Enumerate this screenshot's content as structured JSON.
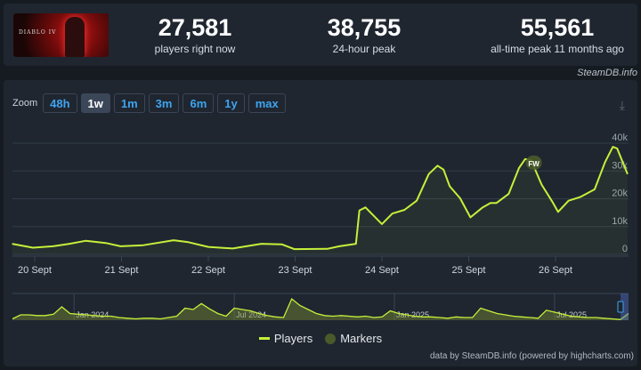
{
  "game": {
    "logo_text": "DIABLO IV"
  },
  "stats": [
    {
      "value": "27,581",
      "label": "players right now"
    },
    {
      "value": "38,755",
      "label": "24-hour peak"
    },
    {
      "value": "55,561",
      "label": "all-time peak 11 months ago"
    }
  ],
  "credit": "SteamDB.info",
  "zoom": {
    "label": "Zoom",
    "buttons": [
      "48h",
      "1w",
      "1m",
      "3m",
      "6m",
      "1y",
      "max"
    ],
    "active": "1w"
  },
  "icons": {
    "download": "download-icon"
  },
  "colors": {
    "line": "#c5f03a",
    "marker": "#4a5a2a",
    "grid": "#323c49"
  },
  "chart_data": {
    "type": "line",
    "x_unit": "days since 20 Sept 00:00",
    "xlim": [
      -0.26,
      6.84
    ],
    "ylim": [
      0,
      40000
    ],
    "yticks": [
      {
        "v": 0,
        "label": "0"
      },
      {
        "v": 10000,
        "label": "10k"
      },
      {
        "v": 20000,
        "label": "20k"
      },
      {
        "v": 30000,
        "label": "30k"
      },
      {
        "v": 40000,
        "label": "40k"
      }
    ],
    "xticks": [
      {
        "v": 0,
        "label": "20 Sept"
      },
      {
        "v": 1,
        "label": "21 Sept"
      },
      {
        "v": 2,
        "label": "22 Sept"
      },
      {
        "v": 3,
        "label": "23 Sept"
      },
      {
        "v": 4,
        "label": "24 Sept"
      },
      {
        "v": 5,
        "label": "25 Sept"
      },
      {
        "v": 6,
        "label": "26 Sept"
      }
    ],
    "series": [
      {
        "name": "Players",
        "points": [
          [
            -0.26,
            3800
          ],
          [
            -0.02,
            2400
          ],
          [
            0.21,
            2900
          ],
          [
            0.4,
            3800
          ],
          [
            0.59,
            4900
          ],
          [
            0.82,
            4100
          ],
          [
            0.99,
            2900
          ],
          [
            1.25,
            3300
          ],
          [
            1.6,
            5100
          ],
          [
            1.77,
            4400
          ],
          [
            2.0,
            2700
          ],
          [
            2.28,
            2100
          ],
          [
            2.61,
            3800
          ],
          [
            2.85,
            3600
          ],
          [
            2.99,
            1900
          ],
          [
            3.37,
            2000
          ],
          [
            3.51,
            2900
          ],
          [
            3.7,
            3800
          ],
          [
            3.74,
            15800
          ],
          [
            3.81,
            16900
          ],
          [
            4.0,
            10900
          ],
          [
            4.12,
            14700
          ],
          [
            4.26,
            16000
          ],
          [
            4.4,
            19300
          ],
          [
            4.54,
            28900
          ],
          [
            4.64,
            31900
          ],
          [
            4.71,
            30500
          ],
          [
            4.78,
            24500
          ],
          [
            4.9,
            20200
          ],
          [
            5.02,
            13300
          ],
          [
            5.16,
            16900
          ],
          [
            5.25,
            18500
          ],
          [
            5.32,
            18500
          ],
          [
            5.46,
            21800
          ],
          [
            5.58,
            31100
          ],
          [
            5.65,
            34300
          ],
          [
            5.72,
            33800
          ],
          [
            5.84,
            25100
          ],
          [
            5.96,
            19100
          ],
          [
            6.03,
            15300
          ],
          [
            6.15,
            19300
          ],
          [
            6.29,
            20700
          ],
          [
            6.45,
            23400
          ],
          [
            6.57,
            33200
          ],
          [
            6.66,
            38700
          ],
          [
            6.71,
            38100
          ],
          [
            6.83,
            28900
          ]
        ]
      }
    ],
    "markers": [
      {
        "x": 5.75,
        "y": 33000,
        "label": "FW"
      }
    ],
    "legend": [
      {
        "name": "Players"
      },
      {
        "name": "Markers"
      }
    ],
    "navigator": {
      "labels": [
        "Jan 2024",
        "Jul 2024",
        "Jan 2025",
        "Jul 2025"
      ],
      "label_positions": [
        0.1,
        0.36,
        0.62,
        0.88
      ],
      "values": [
        2,
        8,
        8,
        7,
        7,
        9,
        20,
        10,
        9,
        8,
        7,
        6,
        6,
        4,
        3,
        2,
        3,
        3,
        2,
        4,
        6,
        18,
        16,
        25,
        17,
        10,
        6,
        18,
        16,
        14,
        10,
        7,
        5,
        4,
        32,
        22,
        16,
        10,
        7,
        6,
        7,
        6,
        5,
        6,
        4,
        5,
        14,
        10,
        8,
        6,
        5,
        5,
        4,
        3,
        5,
        4,
        4,
        18,
        14,
        10,
        8,
        6,
        5,
        4,
        3,
        15,
        12,
        9,
        6,
        5,
        4,
        4,
        3,
        2,
        1,
        10
      ],
      "ymax": 40
    },
    "footer": "data by SteamDB.info (powered by highcharts.com)"
  }
}
